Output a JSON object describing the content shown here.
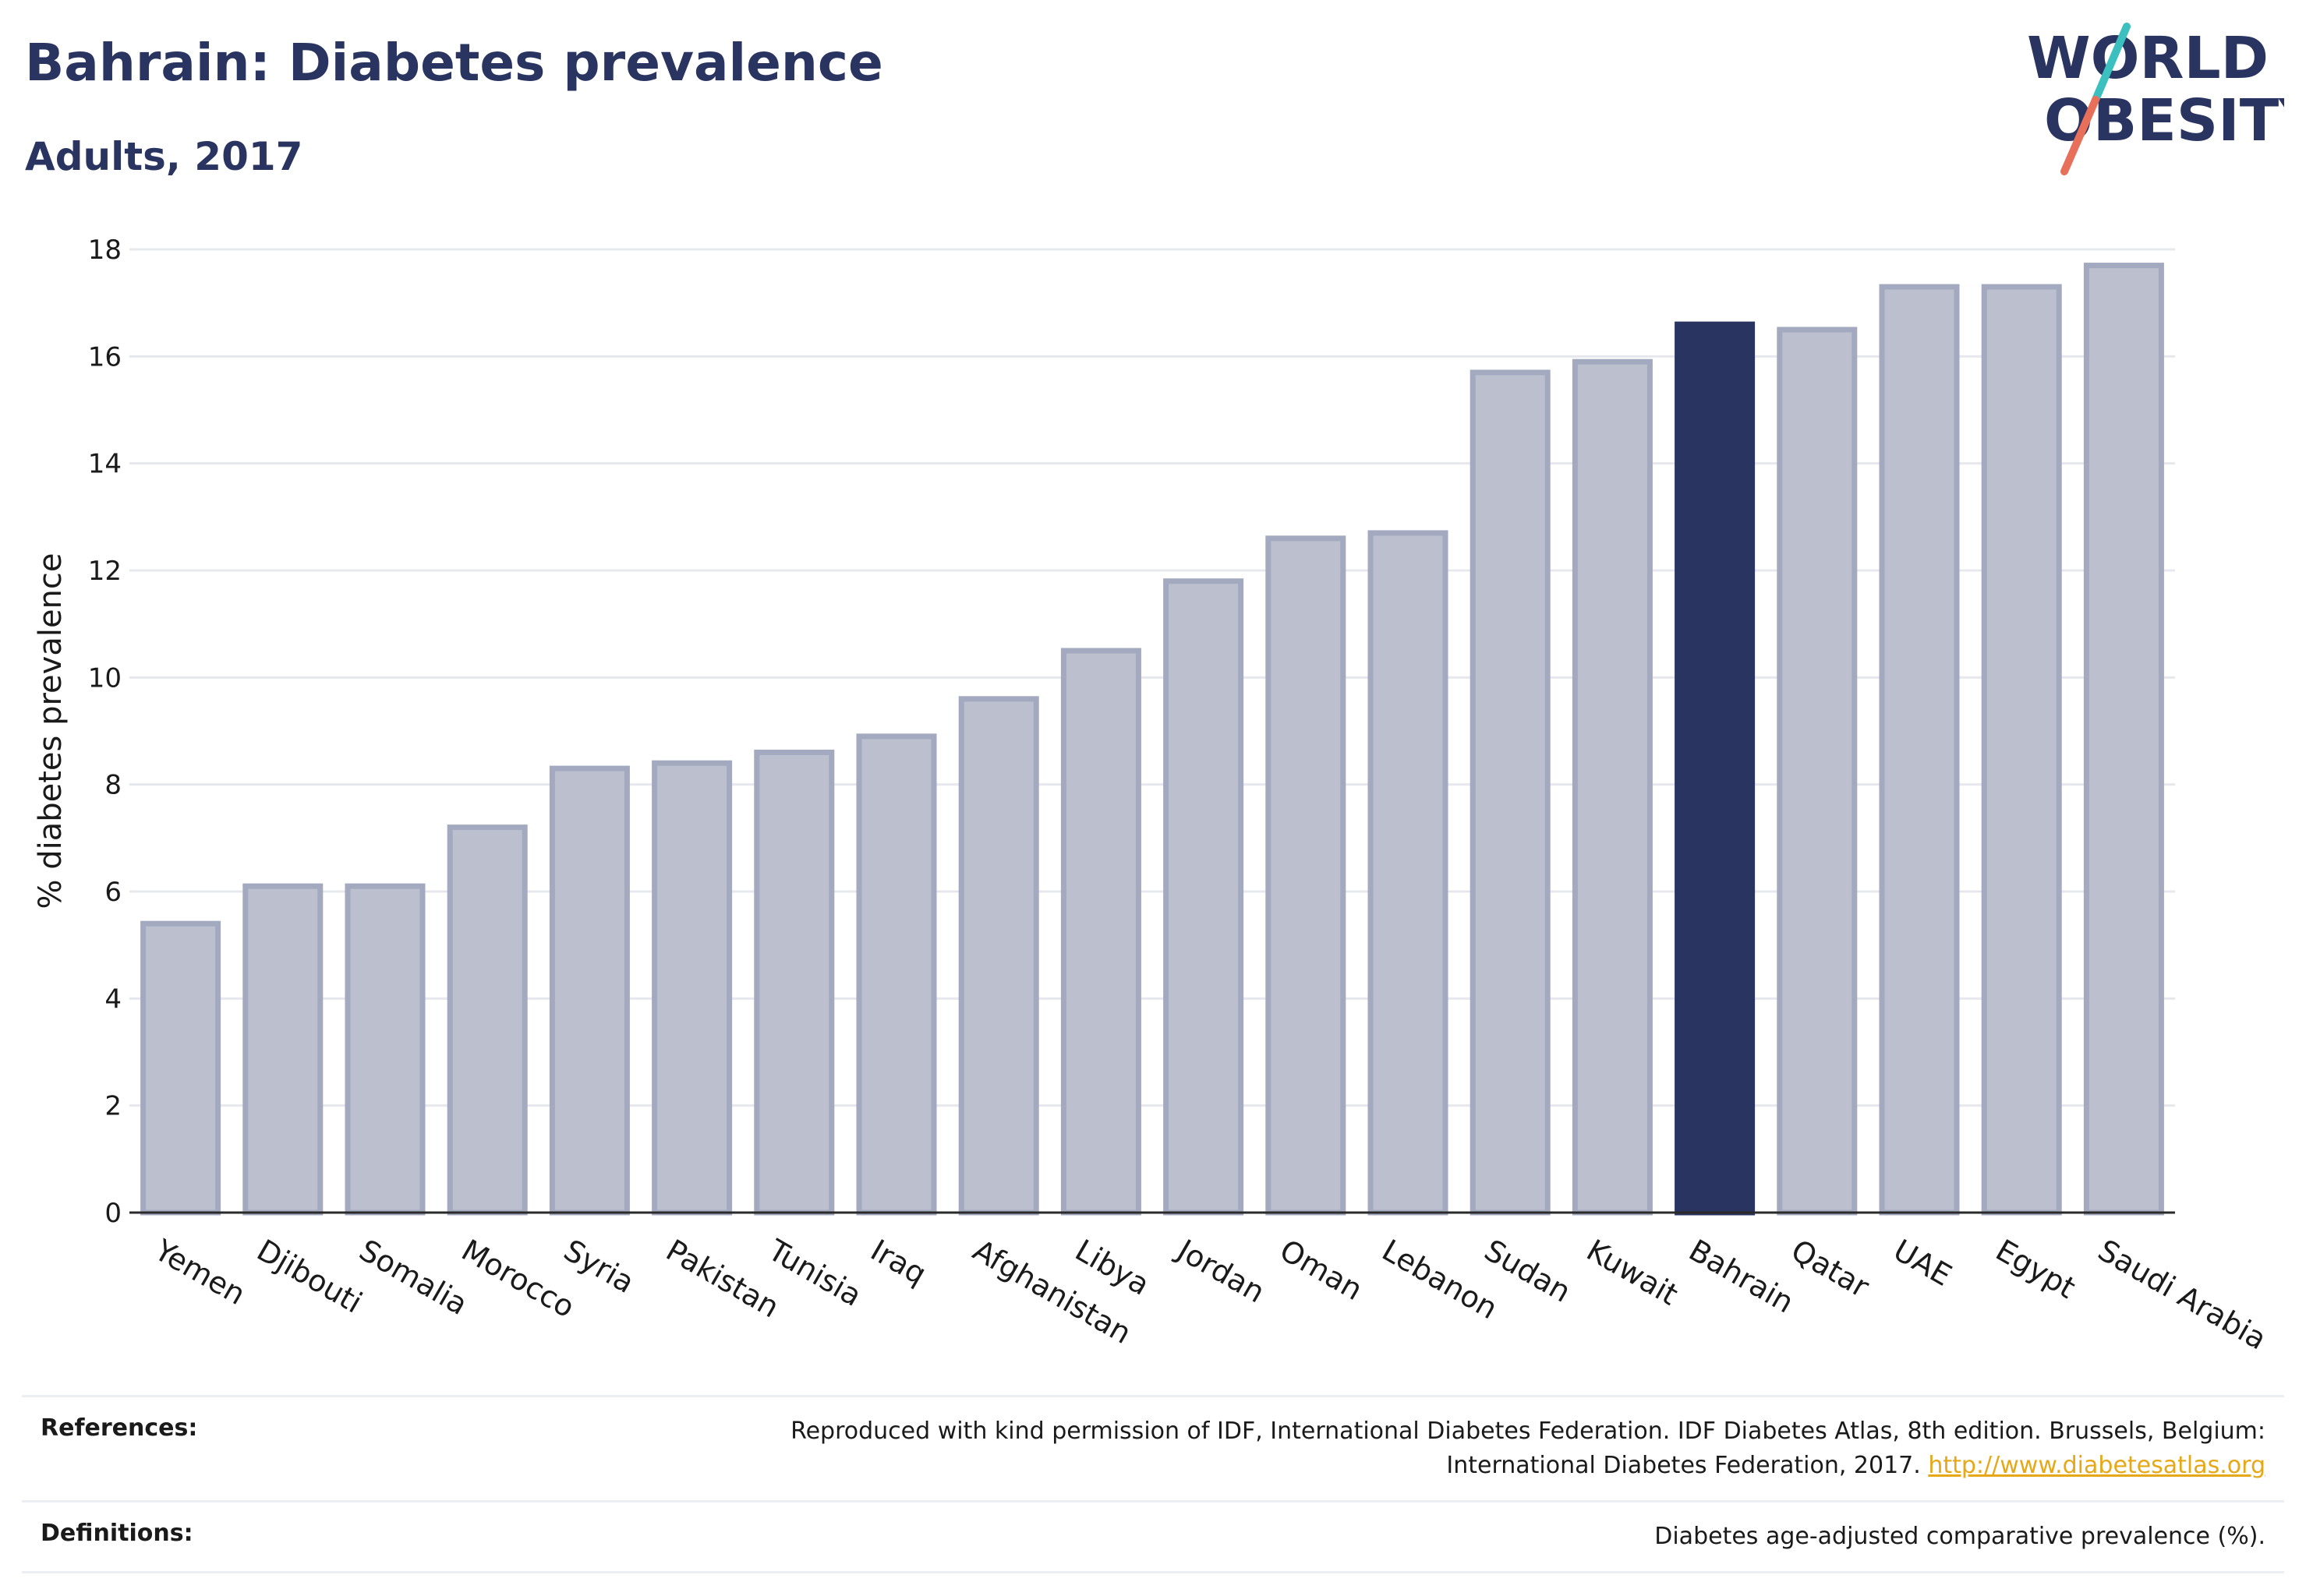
{
  "header": {
    "title": "Bahrain: Diabetes prevalence",
    "subtitle": "Adults, 2017"
  },
  "logo": {
    "line1": "WORLD",
    "line2": "OBESITY",
    "accent_teal": "#3bbfbf",
    "accent_red": "#e8705a"
  },
  "colors": {
    "bar_fill": "#bcc0ce",
    "bar_stroke": "#a3a9bf",
    "highlight": "#2a3460",
    "grid": "#e6e8ee"
  },
  "chart_data": {
    "type": "bar",
    "title": "",
    "xlabel": "",
    "ylabel": "% diabetes prevalence",
    "ylim": [
      0,
      18
    ],
    "yticks": [
      0,
      2,
      4,
      6,
      8,
      10,
      12,
      14,
      16,
      18
    ],
    "grid": true,
    "highlight": "Bahrain",
    "categories": [
      "Yemen",
      "Djibouti",
      "Somalia",
      "Morocco",
      "Syria",
      "Pakistan",
      "Tunisia",
      "Iraq",
      "Afghanistan",
      "Libya",
      "Jordan",
      "Oman",
      "Lebanon",
      "Sudan",
      "Kuwait",
      "Bahrain",
      "Qatar",
      "UAE",
      "Egypt",
      "Saudi Arabia"
    ],
    "values": [
      5.4,
      6.1,
      6.1,
      7.2,
      8.3,
      8.4,
      8.6,
      8.9,
      9.6,
      10.5,
      11.8,
      12.6,
      12.7,
      15.7,
      15.9,
      16.6,
      16.5,
      17.3,
      17.3,
      17.7
    ]
  },
  "footer": {
    "references_label": "References:",
    "references_text": "Reproduced with kind permission of IDF, International Diabetes Federation. IDF Diabetes Atlas, 8th edition. Brussels, Belgium:",
    "references_text2": "International Diabetes Federation, 2017.",
    "references_link": "http://www.diabetesatlas.org",
    "definitions_label": "Definitions:",
    "definitions_text": "Diabetes age-adjusted comparative prevalence (%)."
  }
}
